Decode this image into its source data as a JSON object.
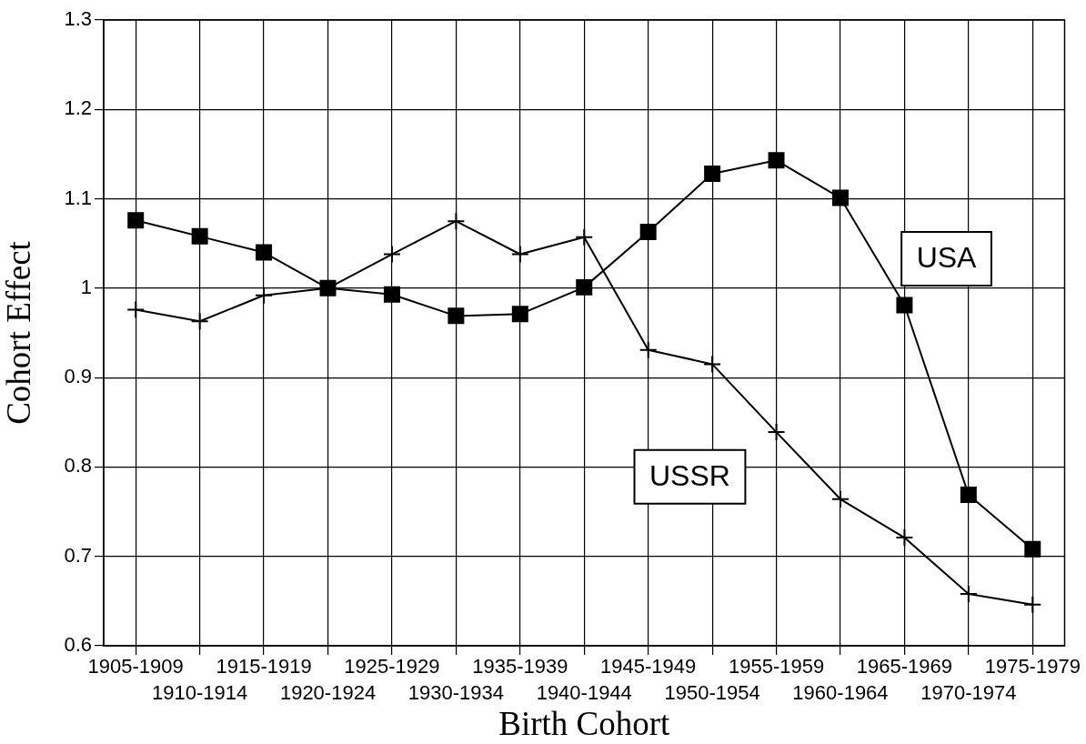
{
  "chart_data": {
    "type": "line",
    "xlabel": "Birth Cohort",
    "ylabel": "Cohort Effect",
    "categories": [
      "1905-1909",
      "1910-1914",
      "1915-1919",
      "1920-1924",
      "1925-1929",
      "1930-1934",
      "1935-1939",
      "1940-1944",
      "1945-1949",
      "1950-1954",
      "1955-1959",
      "1960-1964",
      "1965-1969",
      "1970-1974",
      "1975-1979"
    ],
    "series": [
      {
        "name": "USA",
        "color": "#000000",
        "marker": "square",
        "values": [
          1.076,
          1.058,
          1.04,
          1.0,
          0.993,
          0.969,
          0.971,
          1.001,
          1.063,
          1.128,
          1.143,
          1.101,
          0.981,
          0.769,
          0.708
        ]
      },
      {
        "name": "USSR",
        "color": "#000000",
        "marker": "cross",
        "values": [
          0.976,
          0.963,
          0.992,
          1.0,
          1.038,
          1.075,
          1.038,
          1.057,
          0.931,
          0.915,
          0.839,
          0.764,
          0.721,
          0.658,
          0.646
        ]
      }
    ],
    "ylim": [
      0.6,
      1.3
    ],
    "yticks": [
      0.6,
      0.7,
      0.8,
      0.9,
      1,
      1.1,
      1.2,
      1.3
    ],
    "grid": true,
    "line_style": "solid"
  }
}
